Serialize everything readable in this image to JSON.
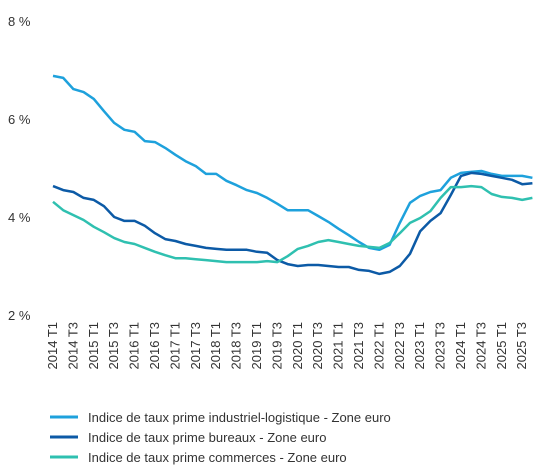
{
  "chart_data": {
    "type": "line",
    "categories": [
      "2014 T1",
      null,
      "2014 T3",
      null,
      "2015 T1",
      null,
      "2015 T3",
      null,
      "2016 T1",
      null,
      "2016 T3",
      null,
      "2017 T1",
      null,
      "2017 T3",
      null,
      "2018 T1",
      null,
      "2018 T3",
      null,
      "2019 T1",
      null,
      "2019 T3",
      null,
      "2020 T1",
      null,
      "2020 T3",
      null,
      "2021 T1",
      null,
      "2021 T3",
      null,
      "2022 T1",
      null,
      "2022 T3",
      null,
      "2023 T1",
      null,
      "2023 T3",
      null,
      "2024 T1",
      null,
      "2024 T3",
      null,
      "2025 T1",
      null,
      "2025 T3",
      null
    ],
    "series": [
      {
        "name": "Indice de taux prime industriel-logistique - Zone euro",
        "color": "#1ea1dc",
        "values": [
          6.9,
          6.86,
          6.63,
          6.57,
          6.43,
          6.18,
          5.94,
          5.8,
          5.76,
          5.57,
          5.55,
          5.43,
          5.29,
          5.16,
          5.06,
          4.9,
          4.9,
          4.76,
          4.67,
          4.57,
          4.51,
          4.41,
          4.29,
          4.16,
          4.16,
          4.16,
          4.04,
          3.92,
          3.78,
          3.65,
          3.51,
          3.39,
          3.35,
          3.45,
          3.9,
          4.31,
          4.45,
          4.53,
          4.57,
          4.82,
          4.92,
          4.94,
          4.96,
          4.9,
          4.86,
          4.86,
          4.86,
          4.82
        ]
      },
      {
        "name": "Indice de taux prime bureaux - Zone euro",
        "color": "#0c5aa6",
        "values": [
          4.65,
          4.57,
          4.53,
          4.41,
          4.37,
          4.24,
          4.02,
          3.94,
          3.94,
          3.84,
          3.69,
          3.57,
          3.53,
          3.47,
          3.43,
          3.39,
          3.37,
          3.35,
          3.35,
          3.35,
          3.31,
          3.29,
          3.14,
          3.06,
          3.02,
          3.04,
          3.04,
          3.02,
          3.0,
          3.0,
          2.94,
          2.92,
          2.86,
          2.9,
          3.02,
          3.27,
          3.73,
          3.94,
          4.1,
          4.47,
          4.86,
          4.92,
          4.9,
          4.86,
          4.82,
          4.78,
          4.69,
          4.71
        ]
      },
      {
        "name": "Indice de taux prime commerces - Zone euro",
        "color": "#2fc0b0",
        "values": [
          4.33,
          4.16,
          4.06,
          3.96,
          3.82,
          3.71,
          3.59,
          3.51,
          3.47,
          3.39,
          3.31,
          3.24,
          3.18,
          3.18,
          3.16,
          3.14,
          3.12,
          3.1,
          3.1,
          3.1,
          3.1,
          3.12,
          3.1,
          3.22,
          3.37,
          3.43,
          3.51,
          3.55,
          3.51,
          3.47,
          3.43,
          3.41,
          3.39,
          3.49,
          3.69,
          3.9,
          4.0,
          4.14,
          4.41,
          4.63,
          4.63,
          4.65,
          4.63,
          4.49,
          4.43,
          4.41,
          4.37,
          4.41
        ]
      }
    ],
    "ylim": [
      2,
      8
    ],
    "yticks": [
      {
        "value": 2,
        "label": "2 %"
      },
      {
        "value": 4,
        "label": "4 %"
      },
      {
        "value": 6,
        "label": "6 %"
      },
      {
        "value": 8,
        "label": "8 %"
      }
    ]
  }
}
